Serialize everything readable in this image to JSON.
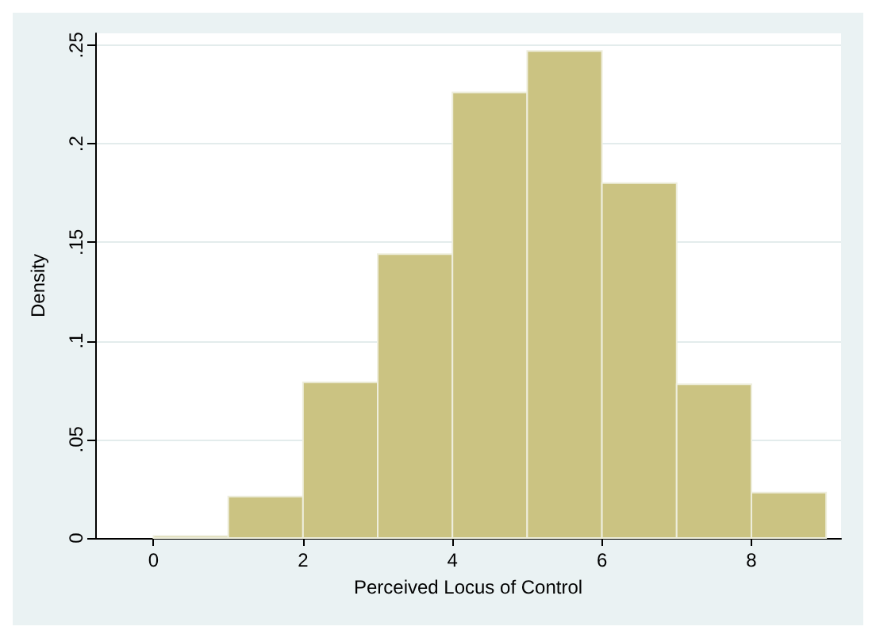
{
  "chart_data": {
    "type": "histogram",
    "xlabel": "Perceived Locus of Control",
    "ylabel": "Density",
    "bins": [
      0,
      1,
      2,
      3,
      4,
      5,
      6,
      7,
      8,
      9
    ],
    "values": [
      0.001,
      0.021,
      0.079,
      0.144,
      0.226,
      0.247,
      0.18,
      0.078,
      0.023
    ],
    "color": "#cbc382",
    "xlim": [
      -0.78,
      9.2
    ],
    "xticks": [
      0,
      2,
      4,
      6,
      8
    ],
    "ylim": [
      0,
      0.256
    ],
    "yticks": [
      {
        "value": 0,
        "label": "0"
      },
      {
        "value": 0.05,
        "label": ".05"
      },
      {
        "value": 0.1,
        "label": ".1"
      },
      {
        "value": 0.15,
        "label": ".15"
      },
      {
        "value": 0.2,
        "label": ".2"
      },
      {
        "value": 0.25,
        "label": ".25"
      }
    ],
    "grid": "y"
  }
}
